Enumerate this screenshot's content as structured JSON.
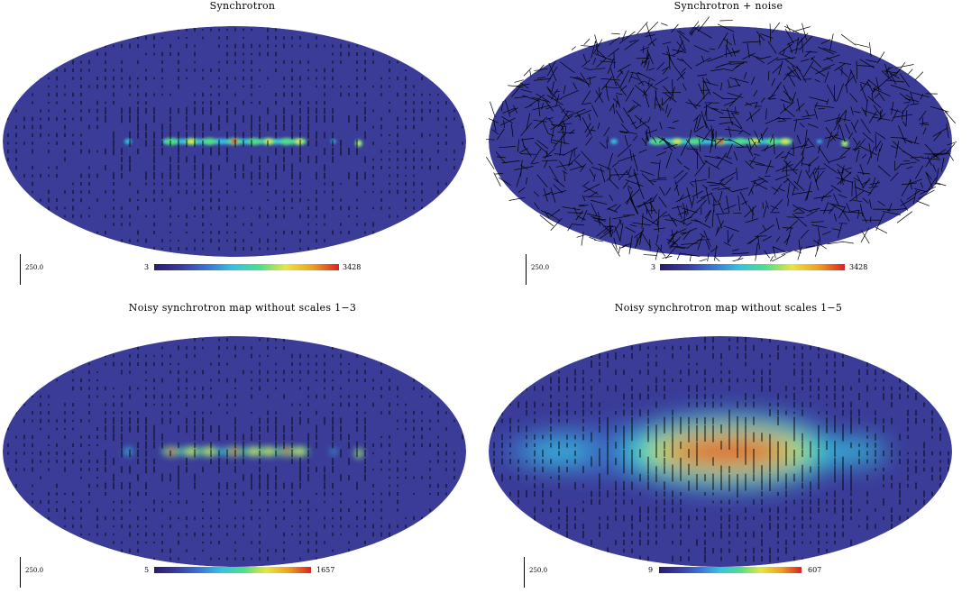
{
  "panels": [
    {
      "title": "Synchrotron",
      "scale_label": "250.0",
      "colorbar": {
        "min": "3",
        "max": "3428"
      },
      "noise": false,
      "blur": "none"
    },
    {
      "title": "Synchrotron + noise",
      "scale_label": "250.0",
      "colorbar": {
        "min": "3",
        "max": "3428"
      },
      "noise": true,
      "blur": "none"
    },
    {
      "title": "Noisy synchrotron map without scales 1−3",
      "scale_label": "250.0",
      "colorbar": {
        "min": "5",
        "max": "1657"
      },
      "noise": false,
      "blur": "medium"
    },
    {
      "title": "Noisy synchrotron map without scales 1−5",
      "scale_label": "250.0",
      "colorbar": {
        "min": "9",
        "max": "607"
      },
      "noise": false,
      "blur": "large"
    }
  ],
  "colors": {
    "map_background": "#3b3b98",
    "colorbar_stops": [
      "#2a1a6e",
      "#3a3aa0",
      "#3b74d6",
      "#35c3e0",
      "#4de08a",
      "#e6e640",
      "#f0a020",
      "#e02020"
    ]
  }
}
